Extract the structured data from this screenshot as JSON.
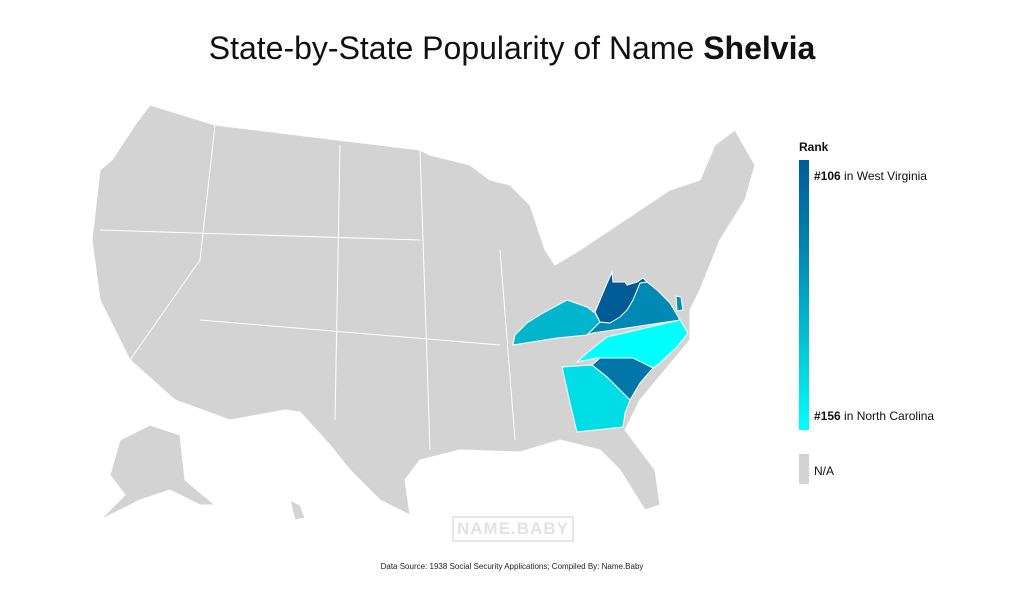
{
  "title": {
    "prefix": "State-by-State Popularity of Name ",
    "name": "Shelvia"
  },
  "legend": {
    "header": "Rank",
    "top": {
      "rank": "#106",
      "text": " in West Virginia"
    },
    "bottom": {
      "rank": "#156",
      "text": " in North Carolina"
    },
    "na": "N/A",
    "colors": {
      "high": "#005b96",
      "low": "#00ffff",
      "na": "#d3d3d3"
    }
  },
  "states": [
    {
      "name": "West Virginia",
      "rank": 106,
      "color": "#005b96"
    },
    {
      "name": "South Carolina",
      "color": "#0077a8"
    },
    {
      "name": "Virginia",
      "color": "#0089b3"
    },
    {
      "name": "Delaware",
      "color": "#0090b5"
    },
    {
      "name": "Kentucky",
      "color": "#00b5cc"
    },
    {
      "name": "Georgia",
      "color": "#00dde6"
    },
    {
      "name": "North Carolina",
      "rank": 156,
      "color": "#00ffff"
    }
  ],
  "watermark": "NAME.BABY",
  "footer": "Data Source: 1938 Social Security Applications; Compiled By: Name.Baby"
}
